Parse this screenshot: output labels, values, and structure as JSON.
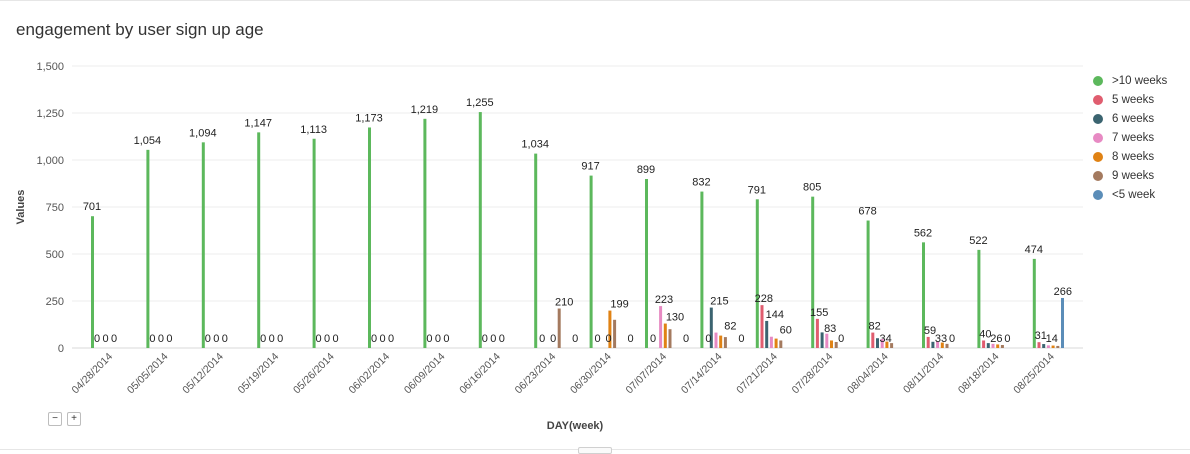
{
  "title": "engagement by user sign up age",
  "zoom": {
    "minus": "−",
    "plus": "+"
  },
  "chart_data": {
    "type": "bar",
    "title": "engagement by user sign up age",
    "xlabel": "DAY(week)",
    "ylabel": "Values",
    "ylim": [
      0,
      1500
    ],
    "yticks": [
      0,
      250,
      500,
      750,
      1000,
      1250,
      1500
    ],
    "ytick_labels": [
      "0",
      "250",
      "500",
      "750",
      "1,000",
      "1,250",
      "1,500"
    ],
    "grid": true,
    "legend_position": "right",
    "categories": [
      "04/28/2014",
      "05/05/2014",
      "05/12/2014",
      "05/19/2014",
      "05/26/2014",
      "06/02/2014",
      "06/09/2014",
      "06/16/2014",
      "06/23/2014",
      "06/30/2014",
      "07/07/2014",
      "07/14/2014",
      "07/21/2014",
      "07/28/2014",
      "08/04/2014",
      "08/11/2014",
      "08/18/2014",
      "08/25/2014"
    ],
    "series": [
      {
        "name": ">10 weeks",
        "color": "#5cb85c",
        "values": [
          701,
          1054,
          1094,
          1147,
          1113,
          1173,
          1219,
          1255,
          1034,
          917,
          899,
          832,
          791,
          805,
          678,
          562,
          522,
          474
        ]
      },
      {
        "name": "5 weeks",
        "color": "#e05d6f",
        "values": [
          0,
          0,
          0,
          0,
          0,
          0,
          0,
          0,
          0,
          0,
          0,
          0,
          228,
          155,
          82,
          59,
          40,
          31
        ]
      },
      {
        "name": "6 weeks",
        "color": "#3b6470",
        "values": [
          0,
          0,
          0,
          0,
          0,
          0,
          0,
          0,
          0,
          0,
          0,
          215,
          144,
          83,
          52,
          33,
          26,
          21
        ]
      },
      {
        "name": "7 weeks",
        "color": "#e78ac3",
        "values": [
          0,
          0,
          0,
          0,
          0,
          0,
          0,
          0,
          0,
          0,
          223,
          82,
          60,
          76,
          48,
          35,
          22,
          14
        ]
      },
      {
        "name": "8 weeks",
        "color": "#e08214",
        "values": [
          0,
          0,
          0,
          0,
          0,
          0,
          0,
          0,
          0,
          199,
          130,
          66,
          50,
          40,
          34,
          29,
          19,
          13
        ]
      },
      {
        "name": "9 weeks",
        "color": "#a47a5f",
        "values": [
          0,
          0,
          0,
          0,
          0,
          0,
          0,
          0,
          210,
          150,
          100,
          58,
          40,
          32,
          26,
          22,
          16,
          11
        ]
      },
      {
        "name": "<5 week",
        "color": "#5b8db8",
        "values": [
          0,
          0,
          0,
          0,
          0,
          0,
          0,
          0,
          0,
          0,
          0,
          0,
          0,
          0,
          0,
          0,
          0,
          266
        ]
      }
    ],
    "data_labels": [
      [
        "701",
        "0",
        "0",
        "0"
      ],
      [
        "1,054",
        "0",
        "0",
        "0"
      ],
      [
        "1,094",
        "0",
        "0",
        "0"
      ],
      [
        "1,147",
        "0",
        "0",
        "0"
      ],
      [
        "1,113",
        "0",
        "0",
        "0"
      ],
      [
        "1,173",
        "0",
        "0",
        "0"
      ],
      [
        "1,219",
        "0",
        "0",
        "0"
      ],
      [
        "1,255",
        "0",
        "0",
        "0"
      ],
      [
        "1,034",
        "0",
        "0",
        "210",
        "0"
      ],
      [
        "917",
        "0",
        "0",
        "199",
        "0"
      ],
      [
        "899",
        "0",
        "223",
        "130",
        "0"
      ],
      [
        "832",
        "0",
        "215",
        "82",
        "0"
      ],
      [
        "791",
        "228",
        "144",
        "60"
      ],
      [
        "805",
        "155",
        "83",
        "0"
      ],
      [
        "678",
        "82",
        "34"
      ],
      [
        "562",
        "59",
        "33",
        "0"
      ],
      [
        "522",
        "40",
        "26",
        "0"
      ],
      [
        "474",
        "31",
        "14",
        "266"
      ]
    ]
  }
}
